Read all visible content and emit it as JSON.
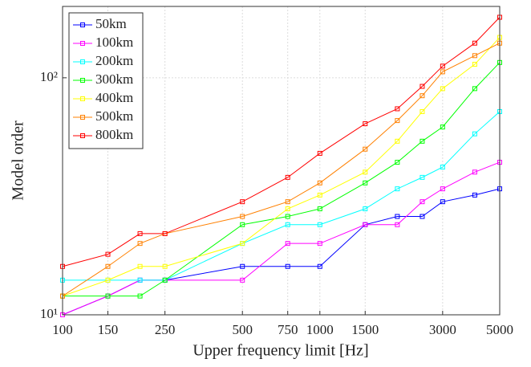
{
  "chart_data": {
    "type": "line",
    "xlabel": "Upper frequency limit [Hz]",
    "ylabel": "Model order",
    "xscale": "log",
    "yscale": "log",
    "x": [
      100,
      150,
      200,
      250,
      500,
      750,
      1000,
      1500,
      2000,
      2500,
      3000,
      4000,
      5000
    ],
    "xlim": [
      100,
      5000
    ],
    "xticks": [
      100,
      150,
      250,
      500,
      750,
      1000,
      1500,
      3000,
      5000
    ],
    "ylim": [
      10,
      200
    ],
    "yticks": [
      {
        "value": 10,
        "label": "10¹"
      },
      {
        "value": 100,
        "label": "10²"
      }
    ],
    "grid": true,
    "legend": "upper left",
    "series": [
      {
        "name": "50km",
        "color": "#0000ff",
        "values": [
          10,
          12,
          14,
          14,
          16,
          16,
          16,
          24,
          26,
          26,
          30,
          32,
          34
        ]
      },
      {
        "name": "100km",
        "color": "#ff00ff",
        "values": [
          10,
          12,
          14,
          14,
          14,
          20,
          20,
          24,
          24,
          30,
          34,
          40,
          44
        ]
      },
      {
        "name": "200km",
        "color": "#00ffff",
        "values": [
          14,
          14,
          14,
          14,
          20,
          24,
          24,
          28,
          34,
          38,
          42,
          58,
          72
        ]
      },
      {
        "name": "300km",
        "color": "#00ff00",
        "values": [
          12,
          12,
          12,
          14,
          24,
          26,
          28,
          36,
          44,
          54,
          62,
          90,
          116
        ]
      },
      {
        "name": "400km",
        "color": "#ffff00",
        "values": [
          12,
          14,
          16,
          16,
          20,
          28,
          32,
          40,
          54,
          72,
          90,
          114,
          148
        ]
      },
      {
        "name": "500km",
        "color": "#ff8000",
        "values": [
          12,
          16,
          20,
          22,
          26,
          30,
          36,
          50,
          66,
          84,
          106,
          124,
          140
        ]
      },
      {
        "name": "800km",
        "color": "#ff0000",
        "values": [
          16,
          18,
          22,
          22,
          30,
          38,
          48,
          64,
          74,
          92,
          112,
          140,
          180
        ]
      }
    ]
  }
}
